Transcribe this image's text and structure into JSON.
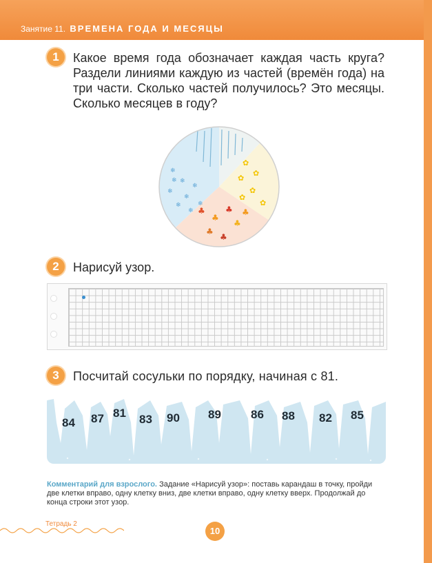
{
  "header": {
    "lesson": "Занятие 11.",
    "topic": "Времена года и месяцы"
  },
  "tasks": [
    {
      "number": "1",
      "text": "Какое время года обозначает каждая часть круга? Раздели линиями каждую из частей (времён года) на три части. Сколько частей получилось? Это месяцы. Сколько месяцев в году?"
    },
    {
      "number": "2",
      "text": "Нарисуй узор."
    },
    {
      "number": "3",
      "text": "Посчитай сосульки по порядку, начиная с 81."
    }
  ],
  "icicles": [
    "84",
    "87",
    "81",
    "83",
    "90",
    "89",
    "86",
    "88",
    "82",
    "85"
  ],
  "comment": {
    "label": "Комментарий для взрослого.",
    "text": "Задание «Нарисуй узор»: поставь карандаш в точку, пройди две клетки вправо, одну клетку вниз, две клетки вправо, одну клетку вверх. Продолжай до конца строки этот узор."
  },
  "footer": {
    "notebook": "Тетрадь 2",
    "page": "10"
  },
  "colors": {
    "accent": "#f4a145",
    "winter": "#d8ecf7",
    "spring": "#eef3f2",
    "summer": "#fbf4d9",
    "autumn": "#fbe2d4",
    "ice": "#cfe6f1"
  }
}
